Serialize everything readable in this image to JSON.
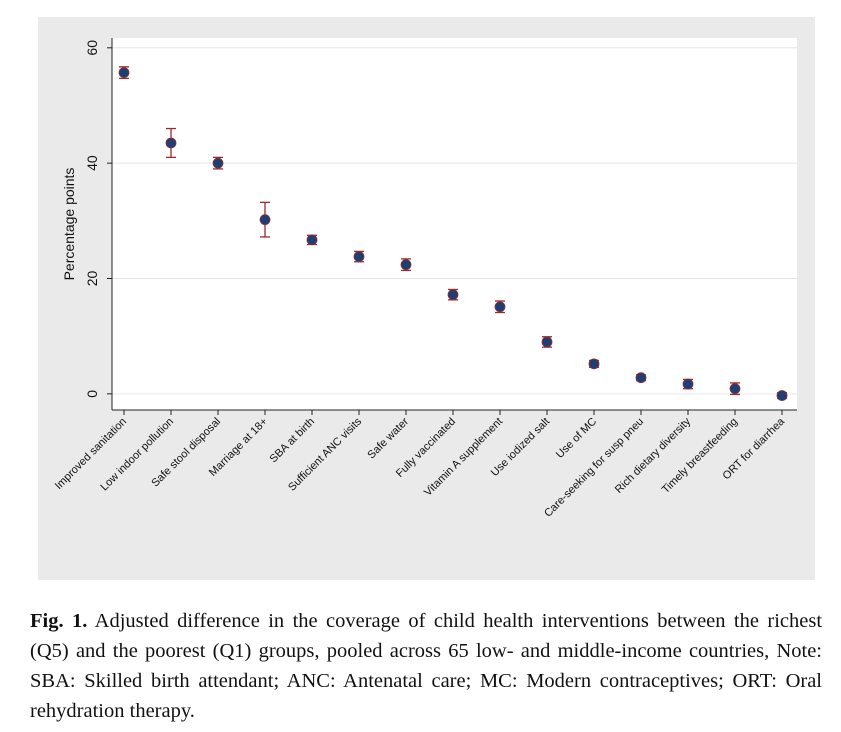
{
  "chart_data": {
    "type": "dot",
    "y_label": "Percentage points",
    "categories": [
      "Improved sanitation",
      "Low indoor pollution",
      "Safe stool disposal",
      "Marriage at 18+",
      "SBA at birth",
      "Sufficient ANC visits",
      "Safe water",
      "Fully vaccinated",
      "Vitamin A supplement",
      "Use iodized salt",
      "Use of MC",
      "Care-seeking for susp pneu",
      "Rich dietary diversity",
      "Timely breastfeeding",
      "ORT for diarrhea"
    ],
    "values": [
      55.7,
      43.5,
      40.0,
      30.2,
      26.7,
      23.8,
      22.4,
      17.2,
      15.1,
      9.0,
      5.2,
      2.8,
      1.7,
      0.9,
      -0.3
    ],
    "errors": [
      1.0,
      2.5,
      1.0,
      3.0,
      0.8,
      0.9,
      1.0,
      0.9,
      1.0,
      0.9,
      0.6,
      0.5,
      0.8,
      1.0,
      0.5
    ],
    "color": "#1c3f75",
    "error_color": "#9b2a2a",
    "ylim": [
      -2.8,
      61.7
    ],
    "yticks": [
      0,
      20,
      40,
      60
    ],
    "grid": true
  },
  "caption": {
    "label": "Fig. 1.",
    "text": "Adjusted difference in the coverage of child health interventions between the richest (Q5) and the poorest (Q1) groups, pooled across 65 low- and middle-income countries, Note: SBA: Skilled birth attendant; ANC: Antenatal care; MC: Modern contraceptives; ORT: Oral rehydration therapy."
  }
}
